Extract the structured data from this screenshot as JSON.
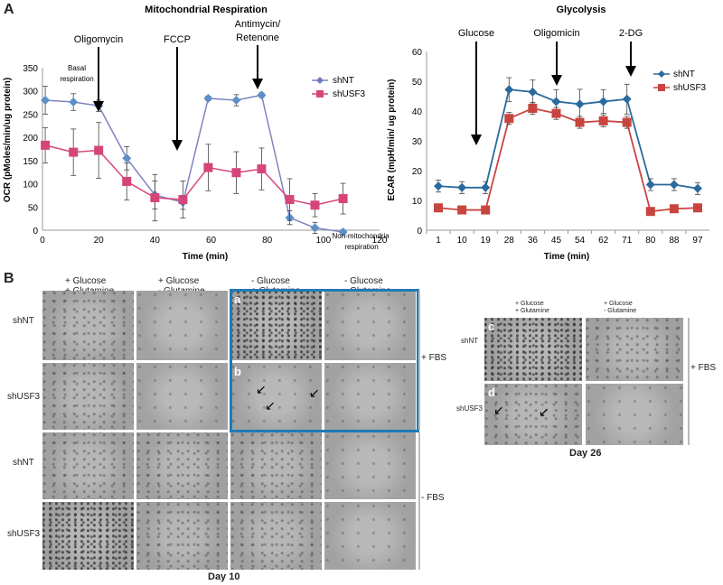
{
  "panel_a_label": "A",
  "panel_b_label": "B",
  "chart_data": [
    {
      "type": "line",
      "title": "Mitochondrial Respiration",
      "xlabel": "Time (min)",
      "ylabel": "OCR (pMoles/min/ug protein)",
      "xlim": [
        0,
        120
      ],
      "ylim": [
        0,
        350
      ],
      "xticks": [
        0,
        20,
        40,
        60,
        80,
        100,
        120
      ],
      "yticks": [
        0,
        50,
        100,
        150,
        200,
        250,
        300,
        350
      ],
      "legend": "right",
      "series": [
        {
          "name": "shNT",
          "color": "#7d84c0",
          "x": [
            1,
            11,
            20,
            30,
            40,
            50,
            59,
            69,
            78,
            88,
            97,
            107
          ],
          "y": [
            280,
            276,
            268,
            155,
            76,
            60,
            284,
            280,
            291,
            27,
            5,
            -4
          ],
          "err": [
            30,
            18,
            12,
            25,
            30,
            15,
            5,
            12,
            5,
            15,
            12,
            5
          ]
        },
        {
          "name": "shUSF3",
          "color": "#d6457a",
          "x": [
            1,
            11,
            20,
            30,
            40,
            50,
            59,
            69,
            78,
            88,
            97,
            107
          ],
          "y": [
            183,
            168,
            172,
            105,
            70,
            66,
            135,
            124,
            132,
            66,
            54,
            68
          ],
          "err": [
            38,
            50,
            60,
            40,
            50,
            40,
            50,
            45,
            45,
            45,
            25,
            33
          ]
        }
      ],
      "annotations": [
        "Basal respiration",
        "Oligomycin",
        "FCCP",
        "Antimycin/ Retenone",
        "Non-mitochondrial respiration"
      ]
    },
    {
      "type": "line",
      "title": "Glycolysis",
      "xlabel": "Time (min)",
      "ylabel": "ECAR (mpH/min/ ug protein)",
      "categories": [
        "1",
        "10",
        "19",
        "28",
        "36",
        "45",
        "54",
        "62",
        "71",
        "80",
        "88",
        "97"
      ],
      "ylim": [
        0,
        60
      ],
      "yticks": [
        0,
        10,
        20,
        30,
        40,
        50,
        60
      ],
      "legend": "right",
      "series": [
        {
          "name": "shNT",
          "color": "#2b6a9c",
          "values": [
            14.8,
            14.3,
            14.3,
            47.2,
            46.4,
            43.2,
            42.3,
            43.2,
            44.0,
            15.3,
            15.3,
            14.0
          ],
          "err": [
            2,
            2,
            2,
            4,
            4,
            4,
            5,
            4,
            5,
            2,
            2,
            2
          ]
        },
        {
          "name": "shUSF3",
          "color": "#c8453f",
          "values": [
            7.5,
            6.8,
            6.8,
            37.5,
            40.9,
            39.2,
            36.2,
            36.7,
            36.2,
            6.3,
            7.2,
            7.5
          ],
          "err": [
            1,
            1,
            1,
            2,
            2,
            2,
            2,
            2,
            2,
            1,
            1,
            1
          ]
        }
      ],
      "annotations": [
        "Glucose",
        "Oligomicin",
        "2-DG"
      ]
    }
  ],
  "chart1_text": {
    "title": "Mitochondrial Respiration",
    "ylabel": "OCR (pMoles/min/ug protein)",
    "xlabel": "Time (min)",
    "basal": [
      "Basal",
      "respiration"
    ],
    "oligomycin": "Oligomycin",
    "fccp": "FCCP",
    "antimycin": [
      "Antimycin/",
      "Retenone"
    ],
    "nonmito": [
      "Non-mitochondrial",
      "respiration"
    ],
    "legend": [
      "shNT",
      "shUSF3"
    ]
  },
  "chart2_text": {
    "title": "Glycolysis",
    "ylabel": "ECAR (mpH/min/ ug protein)",
    "xlabel": "Time (min)",
    "glucose": "Glucose",
    "oligomicin": "Oligomicin",
    "dg": "2-DG",
    "legend": [
      "shNT",
      "shUSF3"
    ]
  },
  "day10": {
    "col_headers": [
      "+ Glucose\n+ Glutamine",
      "+ Glucose\n- Glutamine",
      "- Glucose\n+ Glutamine",
      "- Glucose\n- Glutamine"
    ],
    "row_labels": [
      "shNT",
      "shUSF3",
      "shNT",
      "shUSF3"
    ],
    "fbs_plus": "+ FBS",
    "fbs_minus": "- FBS",
    "caption": "Day 10",
    "tile_a": "a",
    "tile_b": "b"
  },
  "day26": {
    "col_headers": [
      "+ Glucose\n+ Glutamine",
      "+ Glucose\n- Glutamine"
    ],
    "row_labels": [
      "shNT",
      "shUSF3"
    ],
    "fbs": "+ FBS",
    "caption": "Day 26",
    "tile_c": "c",
    "tile_d": "d"
  }
}
